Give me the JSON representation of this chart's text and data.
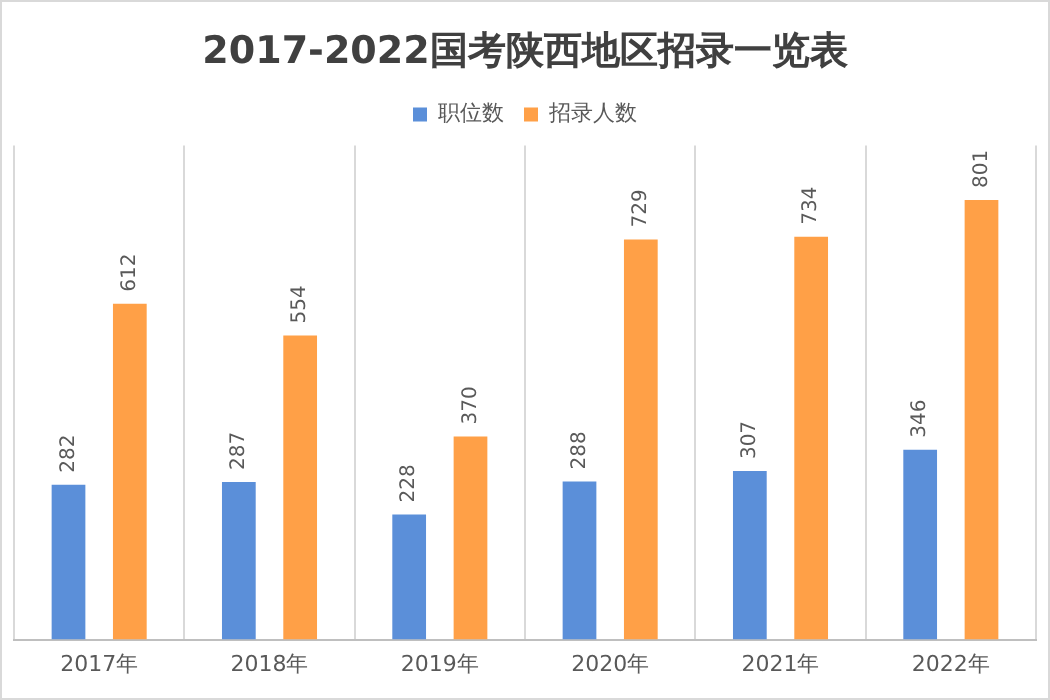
{
  "chart_data": {
    "type": "bar",
    "title": "2017-2022国考陕西地区招录一览表",
    "categories": [
      "2017年",
      "2018年",
      "2019年",
      "2020年",
      "2021年",
      "2022年"
    ],
    "series": [
      {
        "name": "职位数",
        "color": "#5b8fd9",
        "values": [
          282,
          287,
          228,
          288,
          307,
          346
        ]
      },
      {
        "name": "招录人数",
        "color": "#ffa047",
        "values": [
          612,
          554,
          370,
          729,
          734,
          801
        ]
      }
    ],
    "data_labels": true,
    "grid": "x",
    "legend": "top"
  }
}
